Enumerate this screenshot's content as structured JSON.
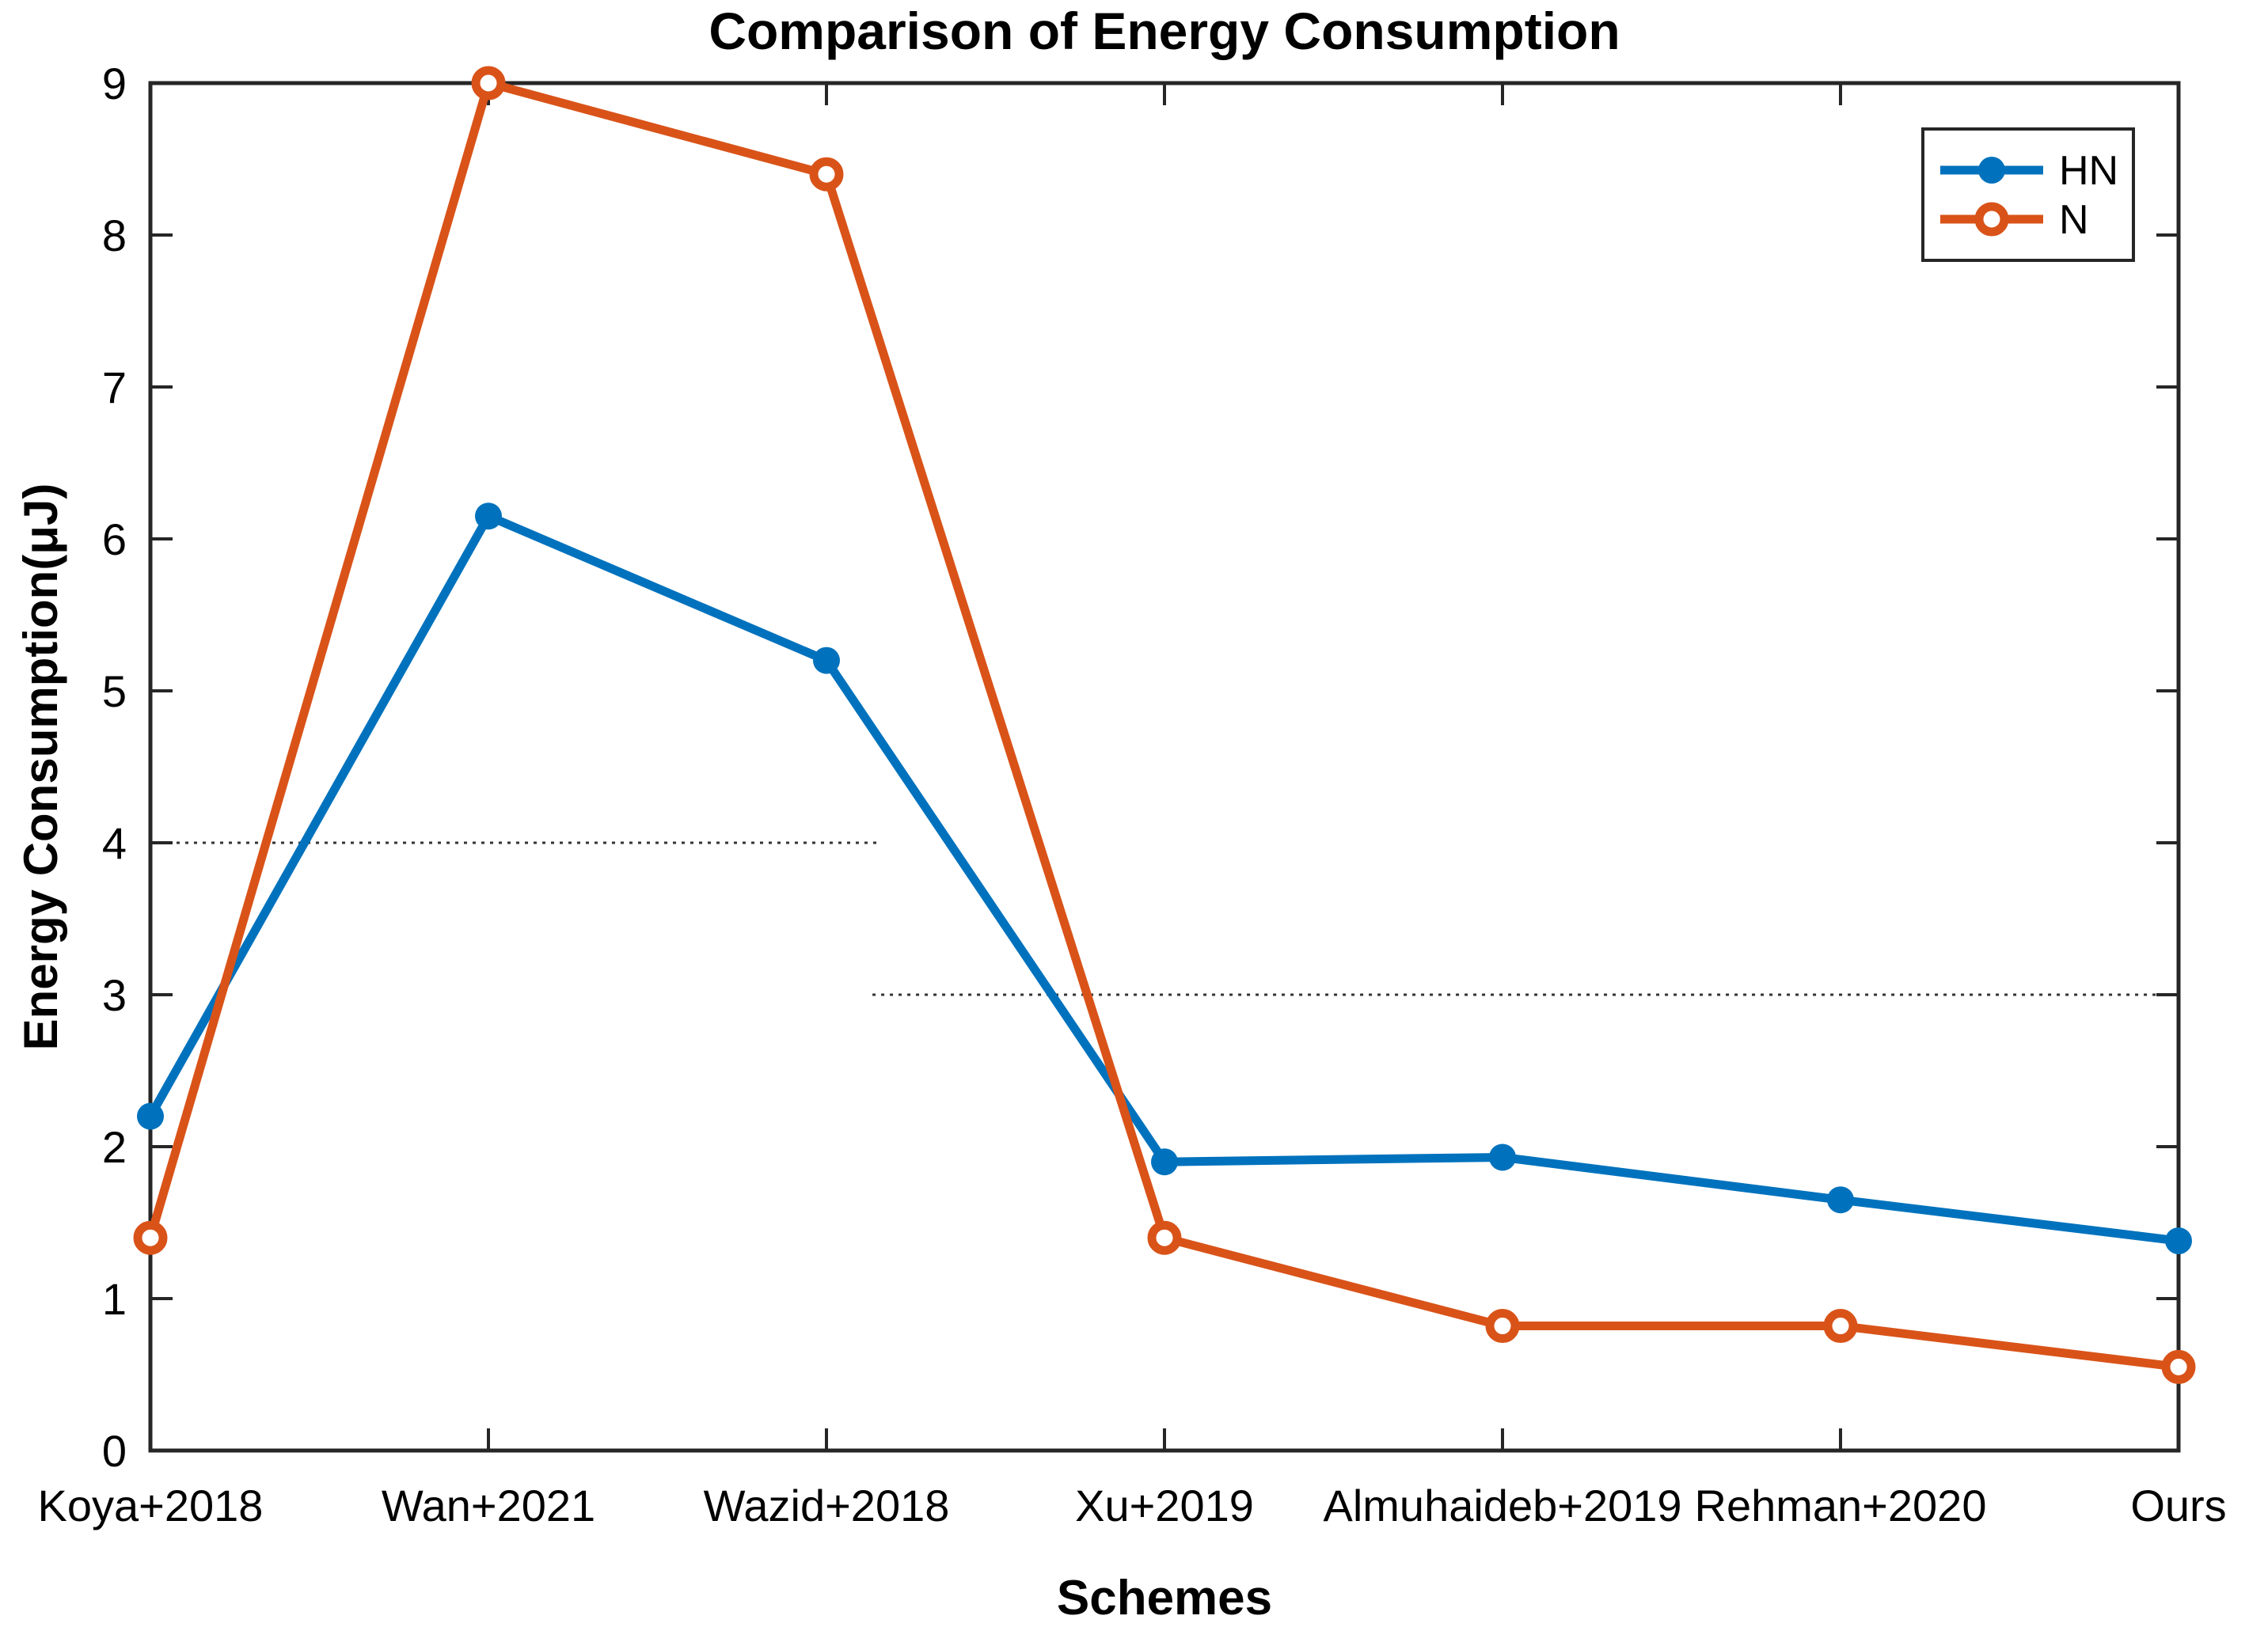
{
  "chart_data": {
    "type": "line",
    "title": "Comparison of Energy Consumption",
    "xlabel": "Schemes",
    "ylabel": "Energy Consumption(μJ)",
    "categories": [
      "Koya+2018",
      "Wan+2021",
      "Wazid+2018",
      "Xu+2019",
      "Almuhaideb+2019",
      "Rehman+2020",
      "Ours"
    ],
    "series": [
      {
        "name": "HN",
        "color": "#0072BD",
        "marker": "filled-circle",
        "values": [
          2.2,
          6.15,
          5.2,
          1.9,
          1.93,
          1.65,
          1.38
        ]
      },
      {
        "name": "N",
        "color": "#D95319",
        "marker": "open-circle",
        "values": [
          1.4,
          9.0,
          8.4,
          1.4,
          0.82,
          0.82,
          0.55
        ]
      }
    ],
    "ylim": [
      0,
      9
    ],
    "yticks": [
      0,
      1,
      2,
      3,
      4,
      5,
      6,
      7,
      8,
      9
    ],
    "grid": false,
    "legend_position": "top-right",
    "annotations": [
      {
        "type": "dotted-hline",
        "y": 4,
        "x_start_frac": 0.0,
        "x_end_frac": 0.359
      },
      {
        "type": "dotted-hline",
        "y": 3,
        "x_start_frac": 0.356,
        "x_end_frac": 1.0
      }
    ],
    "axis_color": "#262626",
    "annotation_color": "#333333",
    "background": "#ffffff"
  }
}
